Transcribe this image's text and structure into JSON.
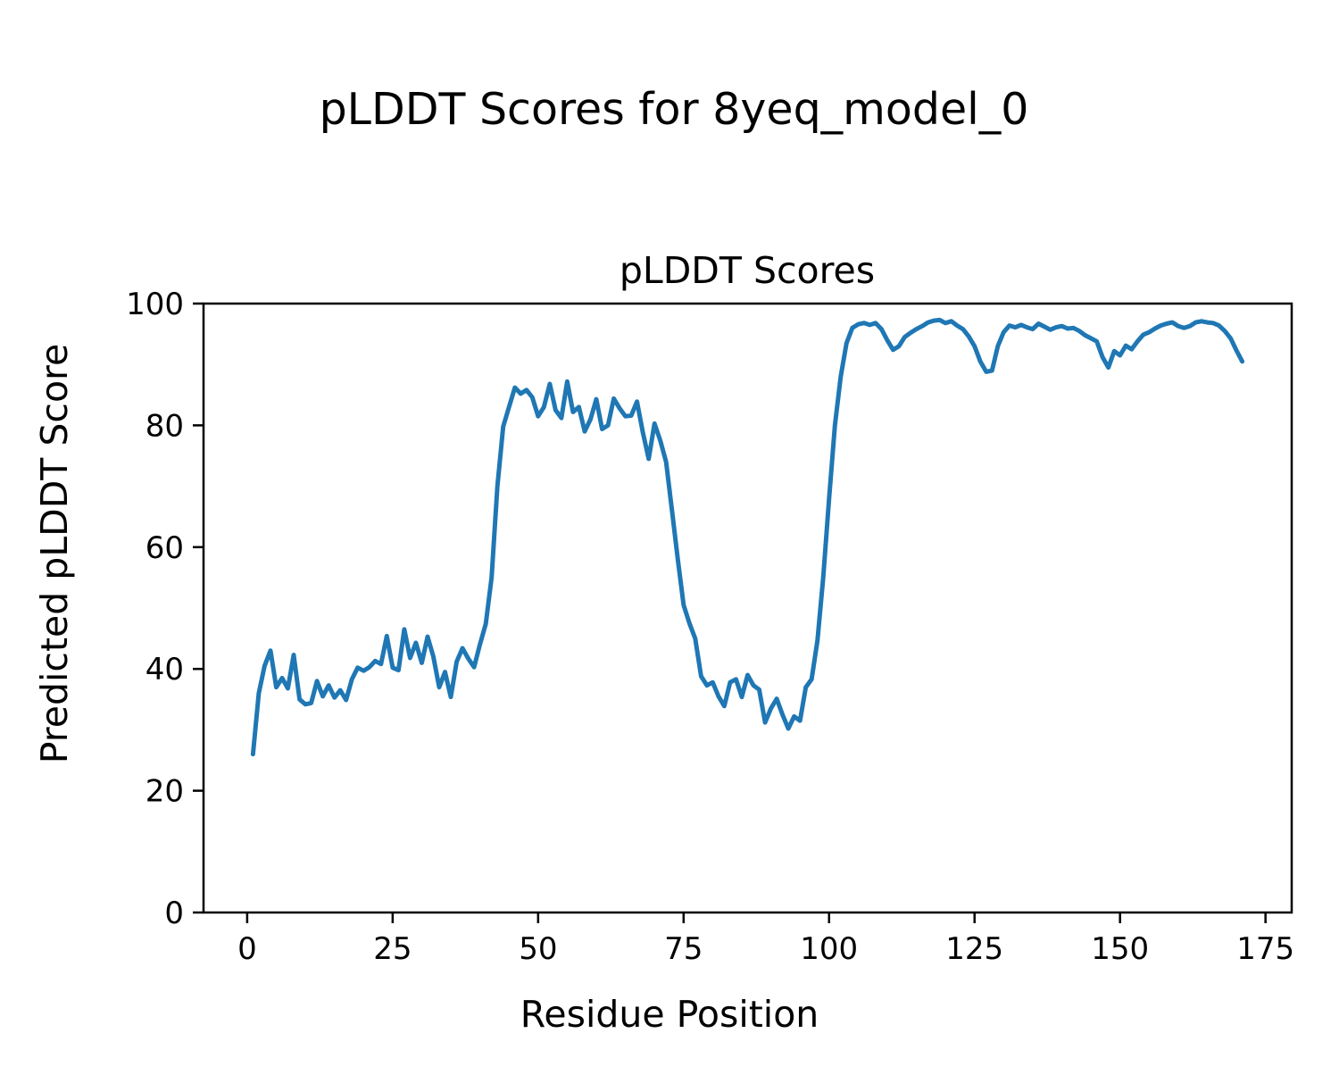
{
  "chart_data": {
    "type": "line",
    "suptitle": "pLDDT Scores for 8yeq_model_0",
    "title": "pLDDT Scores",
    "xlabel": "Residue Position",
    "ylabel": "Predicted pLDDT Score",
    "xlim": [
      -7.5,
      179.5
    ],
    "ylim": [
      0,
      100
    ],
    "xticks": [
      0,
      25,
      50,
      75,
      100,
      125,
      150,
      175
    ],
    "yticks": [
      0,
      20,
      40,
      60,
      80,
      100
    ],
    "grid": false,
    "legend_position": "none",
    "line_color": "#1f77b4",
    "axis_color": "#000000",
    "series": [
      {
        "name": "pLDDT",
        "color": "#1f77b4",
        "x_start": 1,
        "x_step": 1,
        "values": [
          26,
          36,
          40.5,
          43,
          37,
          38.5,
          36.8,
          42.3,
          35,
          34.2,
          34.4,
          38,
          35.5,
          37.3,
          35.3,
          36.5,
          34.9,
          38.3,
          40.2,
          39.7,
          40.3,
          41.3,
          40.8,
          45.4,
          40.2,
          39.8,
          46.5,
          41.8,
          44.3,
          41,
          45.3,
          42,
          37,
          39.5,
          35.4,
          41.2,
          43.4,
          41.7,
          40.3,
          44,
          47.4,
          55,
          70,
          79.8,
          83,
          86.2,
          85.2,
          85.8,
          84.6,
          81.5,
          83,
          86.8,
          82.5,
          81.2,
          87.2,
          82.2,
          83,
          79,
          81,
          84.3,
          79.4,
          80,
          84.4,
          82.8,
          81.5,
          81.6,
          83.9,
          78.8,
          74.5,
          80.3,
          77.5,
          74,
          66,
          58,
          50.5,
          47.5,
          45,
          38.8,
          37.3,
          37.8,
          35.5,
          33.9,
          37.8,
          38.3,
          35.4,
          39,
          37.3,
          36.6,
          31.2,
          33.5,
          35.1,
          32.5,
          30.2,
          32.2,
          31.5,
          37,
          38.3,
          44.6,
          55,
          68,
          80,
          88,
          93.5,
          96,
          96.6,
          96.8,
          96.5,
          96.8,
          95.8,
          94,
          92.4,
          93,
          94.5,
          95.2,
          95.8,
          96.3,
          96.9,
          97.2,
          97.3,
          96.8,
          97.1,
          96.4,
          95.8,
          94.6,
          93,
          90.5,
          88.8,
          89,
          93,
          95.3,
          96.4,
          96.1,
          96.5,
          96.1,
          95.8,
          96.7,
          96.2,
          95.7,
          96.1,
          96.3,
          95.9,
          96,
          95.5,
          94.8,
          94.3,
          93.8,
          91.2,
          89.5,
          92.2,
          91.5,
          93.1,
          92.5,
          93.8,
          94.9,
          95.3,
          95.9,
          96.4,
          96.7,
          96.9,
          96.3,
          96,
          96.3,
          96.9,
          97.1,
          96.9,
          96.8,
          96.4,
          95.5,
          94.3,
          92.3,
          90.5
        ]
      }
    ]
  }
}
